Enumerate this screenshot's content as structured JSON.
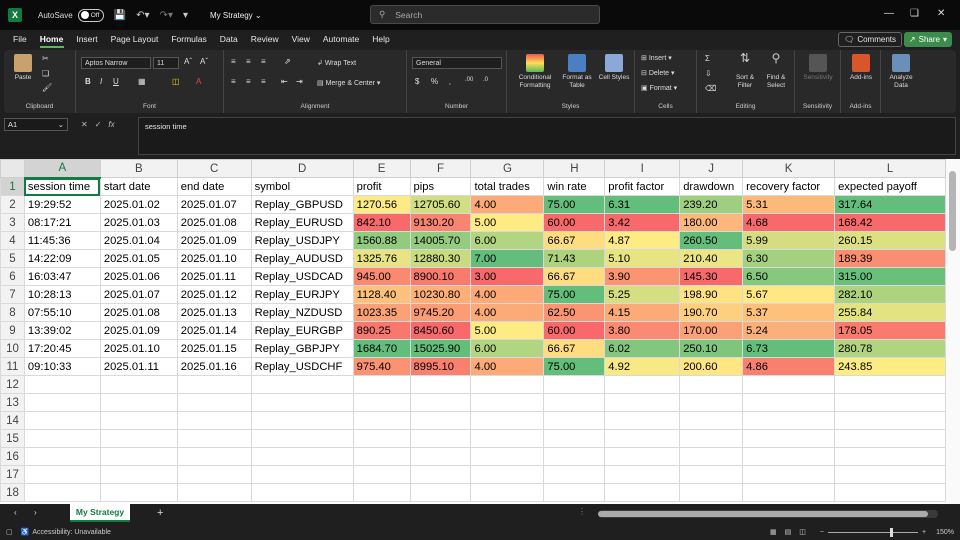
{
  "titlebar": {
    "autosave_label": "AutoSave",
    "autosave_state": "Off",
    "doc_name": "My Strategy",
    "search_placeholder": "Search"
  },
  "menu": [
    "File",
    "Home",
    "Insert",
    "Page Layout",
    "Formulas",
    "Data",
    "Review",
    "View",
    "Automate",
    "Help"
  ],
  "menu_active": "Home",
  "comments_label": "Comments",
  "share_label": "Share",
  "ribbon": {
    "paste": "Paste",
    "clipboard": "Clipboard",
    "font_name": "Aptos Narrow",
    "font_size": "11",
    "font_group": "Font",
    "wrap_text": "Wrap Text",
    "merge_center": "Merge & Center",
    "alignment": "Alignment",
    "number_format": "General",
    "number": "Number",
    "conditional_formatting": "Conditional Formatting",
    "format_as_table": "Format as Table",
    "cell_styles": "Cell Styles",
    "styles": "Styles",
    "insert": "Insert",
    "delete": "Delete",
    "format": "Format",
    "cells": "Cells",
    "sort_filter": "Sort & Filter",
    "find_select": "Find & Select",
    "editing": "Editing",
    "sensitivity": "Sensitivity",
    "sensitivity_group": "Sensitivity",
    "addins": "Add-ins",
    "addins_group": "Add-ins",
    "analyze_data": "Analyze Data"
  },
  "formula_bar": {
    "cell_ref": "A1",
    "fx": "fx",
    "content": "session time"
  },
  "columns": [
    "A",
    "B",
    "C",
    "D",
    "E",
    "F",
    "G",
    "H",
    "I",
    "J",
    "K",
    "L"
  ],
  "headers": [
    "session time",
    "start date",
    "end date",
    "symbol",
    "profit",
    "pips",
    "total trades",
    "win rate",
    "profit factor",
    "drawdown",
    "recovery factor",
    "expected payoff"
  ],
  "rows": [
    [
      "19:29:52",
      "2025.01.02",
      "2025.01.07",
      "Replay_GBPUSD",
      "1270.56",
      "12705.60",
      "4.00",
      "75.00",
      "6.31",
      "239.20",
      "5.31",
      "317.64"
    ],
    [
      "08:17:21",
      "2025.01.03",
      "2025.01.08",
      "Replay_EURUSD",
      "842.10",
      "9130.20",
      "5.00",
      "60.00",
      "3.42",
      "180.00",
      "4.68",
      "168.42"
    ],
    [
      "11:45:36",
      "2025.01.04",
      "2025.01.09",
      "Replay_USDJPY",
      "1560.88",
      "14005.70",
      "6.00",
      "66.67",
      "4.87",
      "260.50",
      "5.99",
      "260.15"
    ],
    [
      "14:22:09",
      "2025.01.05",
      "2025.01.10",
      "Replay_AUDUSD",
      "1325.76",
      "12880.30",
      "7.00",
      "71.43",
      "5.10",
      "210.40",
      "6.30",
      "189.39"
    ],
    [
      "16:03:47",
      "2025.01.06",
      "2025.01.11",
      "Replay_USDCAD",
      "945.00",
      "8900.10",
      "3.00",
      "66.67",
      "3.90",
      "145.30",
      "6.50",
      "315.00"
    ],
    [
      "10:28:13",
      "2025.01.07",
      "2025.01.12",
      "Replay_EURJPY",
      "1128.40",
      "10230.80",
      "4.00",
      "75.00",
      "5.25",
      "198.90",
      "5.67",
      "282.10"
    ],
    [
      "07:55:10",
      "2025.01.08",
      "2025.01.13",
      "Replay_NZDUSD",
      "1023.35",
      "9745.20",
      "4.00",
      "62.50",
      "4.15",
      "190.70",
      "5.37",
      "255.84"
    ],
    [
      "13:39:02",
      "2025.01.09",
      "2025.01.14",
      "Replay_EURGBP",
      "890.25",
      "8450.60",
      "5.00",
      "60.00",
      "3.80",
      "170.00",
      "5.24",
      "178.05"
    ],
    [
      "17:20:45",
      "2025.01.10",
      "2025.01.15",
      "Replay_GBPJPY",
      "1684.70",
      "15025.90",
      "6.00",
      "66.67",
      "6.02",
      "250.10",
      "6.73",
      "280.78"
    ],
    [
      "09:10:33",
      "2025.01.11",
      "2025.01.16",
      "Replay_USDCHF",
      "975.40",
      "8995.10",
      "4.00",
      "75.00",
      "4.92",
      "200.60",
      "4.86",
      "243.85"
    ]
  ],
  "row_numbers": [
    "1",
    "2",
    "3",
    "4",
    "5",
    "6",
    "7",
    "8",
    "9",
    "10",
    "11",
    "12",
    "13",
    "14",
    "15",
    "16",
    "17",
    "18"
  ],
  "scale_colors": {
    "low": "#f8696b",
    "mid": "#ffeb84",
    "high": "#63be7b"
  },
  "sheet_tab": "My Strategy",
  "status": {
    "accessibility": "Accessibility: Unavailable",
    "zoom": "150%"
  }
}
